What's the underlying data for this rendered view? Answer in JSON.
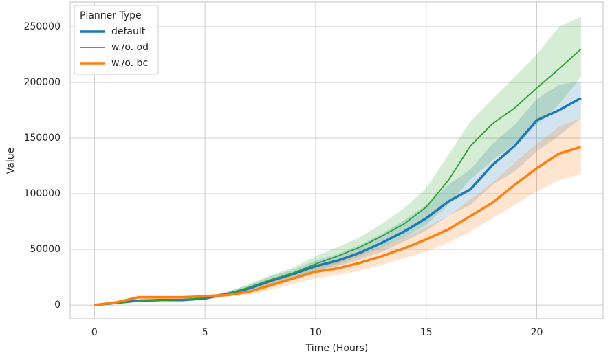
{
  "chart_data": {
    "type": "line",
    "xlabel": "Time (Hours)",
    "ylabel": "Value",
    "legend_title": "Planner Type",
    "legend_position": "upper left",
    "grid": true,
    "xlim": [
      -1.1,
      23.0
    ],
    "ylim": [
      -12300,
      272200
    ],
    "xticks": [
      0,
      5,
      10,
      15,
      20
    ],
    "yticks": [
      0,
      50000,
      100000,
      150000,
      200000,
      250000
    ],
    "x": [
      0,
      1,
      2,
      3,
      4,
      5,
      6,
      7,
      8,
      9,
      10,
      11,
      12,
      13,
      14,
      15,
      16,
      17,
      18,
      19,
      20,
      21,
      22
    ],
    "series": [
      {
        "name": "default",
        "color": "#1f77b4",
        "line_width": 3.5,
        "values": [
          0,
          2000,
          4000,
          4500,
          4500,
          6000,
          10000,
          15000,
          22000,
          28000,
          35000,
          40000,
          47000,
          56000,
          66000,
          78000,
          93000,
          104000,
          126000,
          143000,
          166000,
          175000,
          186000
        ],
        "lower": [
          0,
          1500,
          3000,
          3500,
          3500,
          4500,
          8000,
          12000,
          18000,
          24000,
          30000,
          35000,
          41000,
          48000,
          57000,
          67000,
          80000,
          90000,
          108000,
          120000,
          138000,
          152000,
          168000
        ],
        "upper": [
          0,
          2500,
          5000,
          5500,
          5500,
          7500,
          12000,
          18000,
          26000,
          32000,
          40000,
          46000,
          54000,
          64000,
          76000,
          90000,
          108000,
          122000,
          145000,
          162000,
          185000,
          198000,
          201000
        ]
      },
      {
        "name": "w./o. od",
        "color": "#2ca02c",
        "line_width": 1.8,
        "values": [
          0,
          2000,
          3500,
          4000,
          5000,
          6500,
          10000,
          16000,
          23000,
          29000,
          37000,
          44000,
          52000,
          62000,
          73000,
          88000,
          112000,
          143000,
          163000,
          177000,
          195000,
          212000,
          230000
        ],
        "lower": [
          0,
          1500,
          3000,
          3500,
          4000,
          5500,
          8500,
          13000,
          19000,
          24000,
          31000,
          37000,
          44000,
          52000,
          61000,
          72000,
          90000,
          113000,
          130000,
          145000,
          162000,
          180000,
          205000
        ],
        "upper": [
          0,
          2500,
          4000,
          4500,
          6000,
          7500,
          11500,
          19000,
          27000,
          34000,
          44000,
          52000,
          61000,
          73000,
          87000,
          105000,
          135000,
          165000,
          185000,
          205000,
          225000,
          250000,
          259000
        ]
      },
      {
        "name": "w./o. bc",
        "color": "#ff7f0e",
        "line_width": 3.5,
        "values": [
          0,
          2500,
          7000,
          7000,
          7000,
          8000,
          9000,
          12000,
          18000,
          24000,
          30000,
          33000,
          38000,
          44000,
          51000,
          59000,
          68000,
          80000,
          92000,
          108000,
          123000,
          136000,
          142000
        ],
        "lower": [
          0,
          1500,
          5000,
          5500,
          5500,
          6500,
          7500,
          9000,
          14000,
          19000,
          24000,
          27000,
          31000,
          36000,
          42000,
          48000,
          56000,
          66000,
          78000,
          90000,
          102000,
          112000,
          118000
        ],
        "upper": [
          0,
          3500,
          9000,
          8500,
          8500,
          9500,
          11000,
          15000,
          22000,
          29000,
          36000,
          40000,
          46000,
          53000,
          61000,
          70000,
          80000,
          95000,
          110000,
          128000,
          145000,
          160000,
          168000
        ]
      }
    ]
  }
}
